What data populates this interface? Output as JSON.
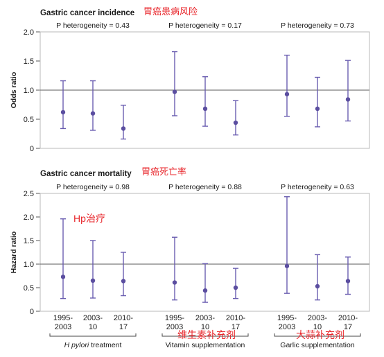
{
  "colors": {
    "point": "#5b4ea0",
    "ci": "#6a5db0",
    "reference_line": "#7a7a7a",
    "plot_border": "#b8b8b8",
    "annotation_red": "#e8262b",
    "text": "#1a1a1a"
  },
  "chart_data": [
    {
      "type": "scatter",
      "title": "Gastric cancer incidence",
      "title_annotation": "胃癌患病风险",
      "ylabel": "Odds ratio",
      "ylim": [
        0,
        2.0
      ],
      "yticks": [
        "0",
        "0.5",
        "1.0",
        "1.5",
        "2.0"
      ],
      "reference_line": 1.0,
      "heterogeneity": [
        "P heterogeneity = 0.43",
        "P heterogeneity = 0.17",
        "P heterogeneity = 0.73"
      ],
      "groups": [
        {
          "name": "Hp treatment",
          "periods": [
            "1995-2003",
            "2003-10",
            "2010-17"
          ],
          "estimate": [
            0.62,
            0.6,
            0.34
          ],
          "lower": [
            0.34,
            0.31,
            0.16
          ],
          "upper": [
            1.16,
            1.16,
            0.74
          ]
        },
        {
          "name": "Vitamin supplementation",
          "periods": [
            "1995-2003",
            "2003-10",
            "2010-17"
          ],
          "estimate": [
            0.97,
            0.68,
            0.44
          ],
          "lower": [
            0.56,
            0.38,
            0.23
          ],
          "upper": [
            1.66,
            1.23,
            0.82
          ]
        },
        {
          "name": "Garlic supplementation",
          "periods": [
            "1995-2003",
            "2003-10",
            "2010-17"
          ],
          "estimate": [
            0.93,
            0.68,
            0.84
          ],
          "lower": [
            0.55,
            0.37,
            0.47
          ],
          "upper": [
            1.6,
            1.22,
            1.51
          ]
        }
      ]
    },
    {
      "type": "scatter",
      "title": "Gastric cancer mortality",
      "title_annotation": "胃癌死亡率",
      "ylabel": "Hazard ratio",
      "ylim": [
        0,
        2.5
      ],
      "yticks": [
        "0",
        "0.5",
        "1.0",
        "1.5",
        "2.0",
        "2.5"
      ],
      "reference_line": 1.0,
      "heterogeneity": [
        "P heterogeneity = 0.98",
        "P heterogeneity = 0.88",
        "P heterogeneity = 0.63"
      ],
      "groups": [
        {
          "name": "Hp treatment",
          "periods": [
            "1995-2003",
            "2003-10",
            "2010-17"
          ],
          "estimate": [
            0.73,
            0.65,
            0.64
          ],
          "lower": [
            0.27,
            0.28,
            0.33
          ],
          "upper": [
            1.96,
            1.5,
            1.25
          ]
        },
        {
          "name": "Vitamin supplementation",
          "periods": [
            "1995-2003",
            "2003-10",
            "2010-17"
          ],
          "estimate": [
            0.61,
            0.44,
            0.5
          ],
          "lower": [
            0.24,
            0.19,
            0.27
          ],
          "upper": [
            1.57,
            1.01,
            0.91
          ]
        },
        {
          "name": "Garlic supplementation",
          "periods": [
            "1995-2003",
            "2003-10",
            "2010-17"
          ],
          "estimate": [
            0.96,
            0.53,
            0.64
          ],
          "lower": [
            0.38,
            0.24,
            0.36
          ],
          "upper": [
            2.43,
            1.2,
            1.15
          ]
        }
      ]
    }
  ],
  "x_axis": {
    "tick_labels": [
      [
        "1995-",
        "2003"
      ],
      [
        "2003-",
        "10"
      ],
      [
        "2010-",
        "17"
      ],
      [
        "1995-",
        "2003"
      ],
      [
        "2003-",
        "10"
      ],
      [
        "2010-",
        "17"
      ],
      [
        "1995-",
        "2003"
      ],
      [
        "2003-",
        "10"
      ],
      [
        "2010-",
        "17"
      ]
    ],
    "group_labels": [
      {
        "italic": "H pylori",
        "rest": " treatment",
        "annotation": "Hp治疗"
      },
      {
        "italic": "",
        "rest": "Vitamin supplementation",
        "annotation": "维生素补充剂"
      },
      {
        "italic": "",
        "rest": "Garlic supplementation",
        "annotation": "大蒜补充剂"
      }
    ]
  }
}
